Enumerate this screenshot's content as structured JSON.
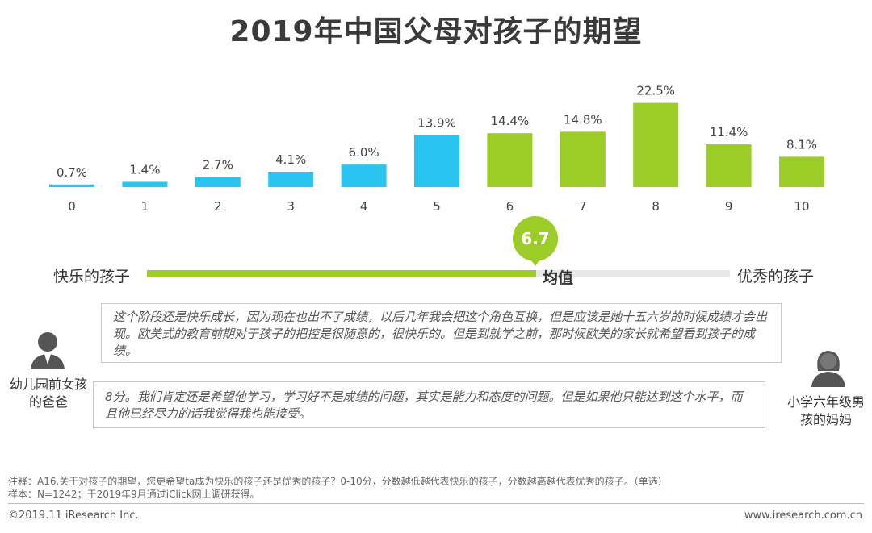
{
  "title": "2019年中国父母对孩子的期望",
  "chart_data": {
    "type": "bar",
    "categories": [
      "0",
      "1",
      "2",
      "3",
      "4",
      "5",
      "6",
      "7",
      "8",
      "9",
      "10"
    ],
    "values": [
      0.7,
      1.4,
      2.7,
      4.1,
      6.0,
      13.9,
      14.4,
      14.8,
      22.5,
      11.4,
      8.1
    ],
    "value_labels": [
      "0.7%",
      "1.4%",
      "2.7%",
      "4.1%",
      "6.0%",
      "13.9%",
      "14.4%",
      "14.8%",
      "22.5%",
      "11.4%",
      "8.1%"
    ],
    "unit": "%",
    "colors": [
      "#29c5f0",
      "#29c5f0",
      "#29c5f0",
      "#29c5f0",
      "#29c5f0",
      "#29c5f0",
      "#9ccc28",
      "#9ccc28",
      "#9ccc28",
      "#9ccc28",
      "#9ccc28"
    ],
    "ylim": [
      0,
      25
    ]
  },
  "scale": {
    "left_label": "快乐的孩子",
    "right_label": "优秀的孩子",
    "mean_value": "6.7",
    "mean_label": "均值",
    "mean_numeric": 6.7
  },
  "quotes": [
    {
      "text": "这个阶段还是快乐成长，因为现在也出不了成绩，以后几年我会把这个角色互换，但是应该是她十五六岁的时候成绩才会出现。欧美式的教育前期对于孩子的把控是很随意的，很快乐的。但是到就学之前，那时候欧美的家长就希望看到孩子的成绩。",
      "person": "幼儿园前女孩的爸爸"
    },
    {
      "text": "8分。我们肯定还是希望他学习，学习好不是成绩的问题，其实是能力和态度的问题。但是如果他只能达到这个水平，而且他已经尽力的话我觉得我也能接受。",
      "person": "小学六年级男孩的妈妈"
    }
  ],
  "notes": {
    "note": "注释：A16.关于对孩子的期望，您更希望ta成为快乐的孩子还是优秀的孩子？0-10分，分数越低越代表快乐的孩子，分数越高越代表优秀的孩子。（单选）",
    "sample": "样本：N=1242；于2019年9月通过iClick网上调研获得。"
  },
  "footer": {
    "copyright": "©2019.11 iResearch Inc.",
    "website": "www.iresearch.com.cn"
  },
  "colors": {
    "blue": "#29c5f0",
    "green": "#9ccc28"
  }
}
